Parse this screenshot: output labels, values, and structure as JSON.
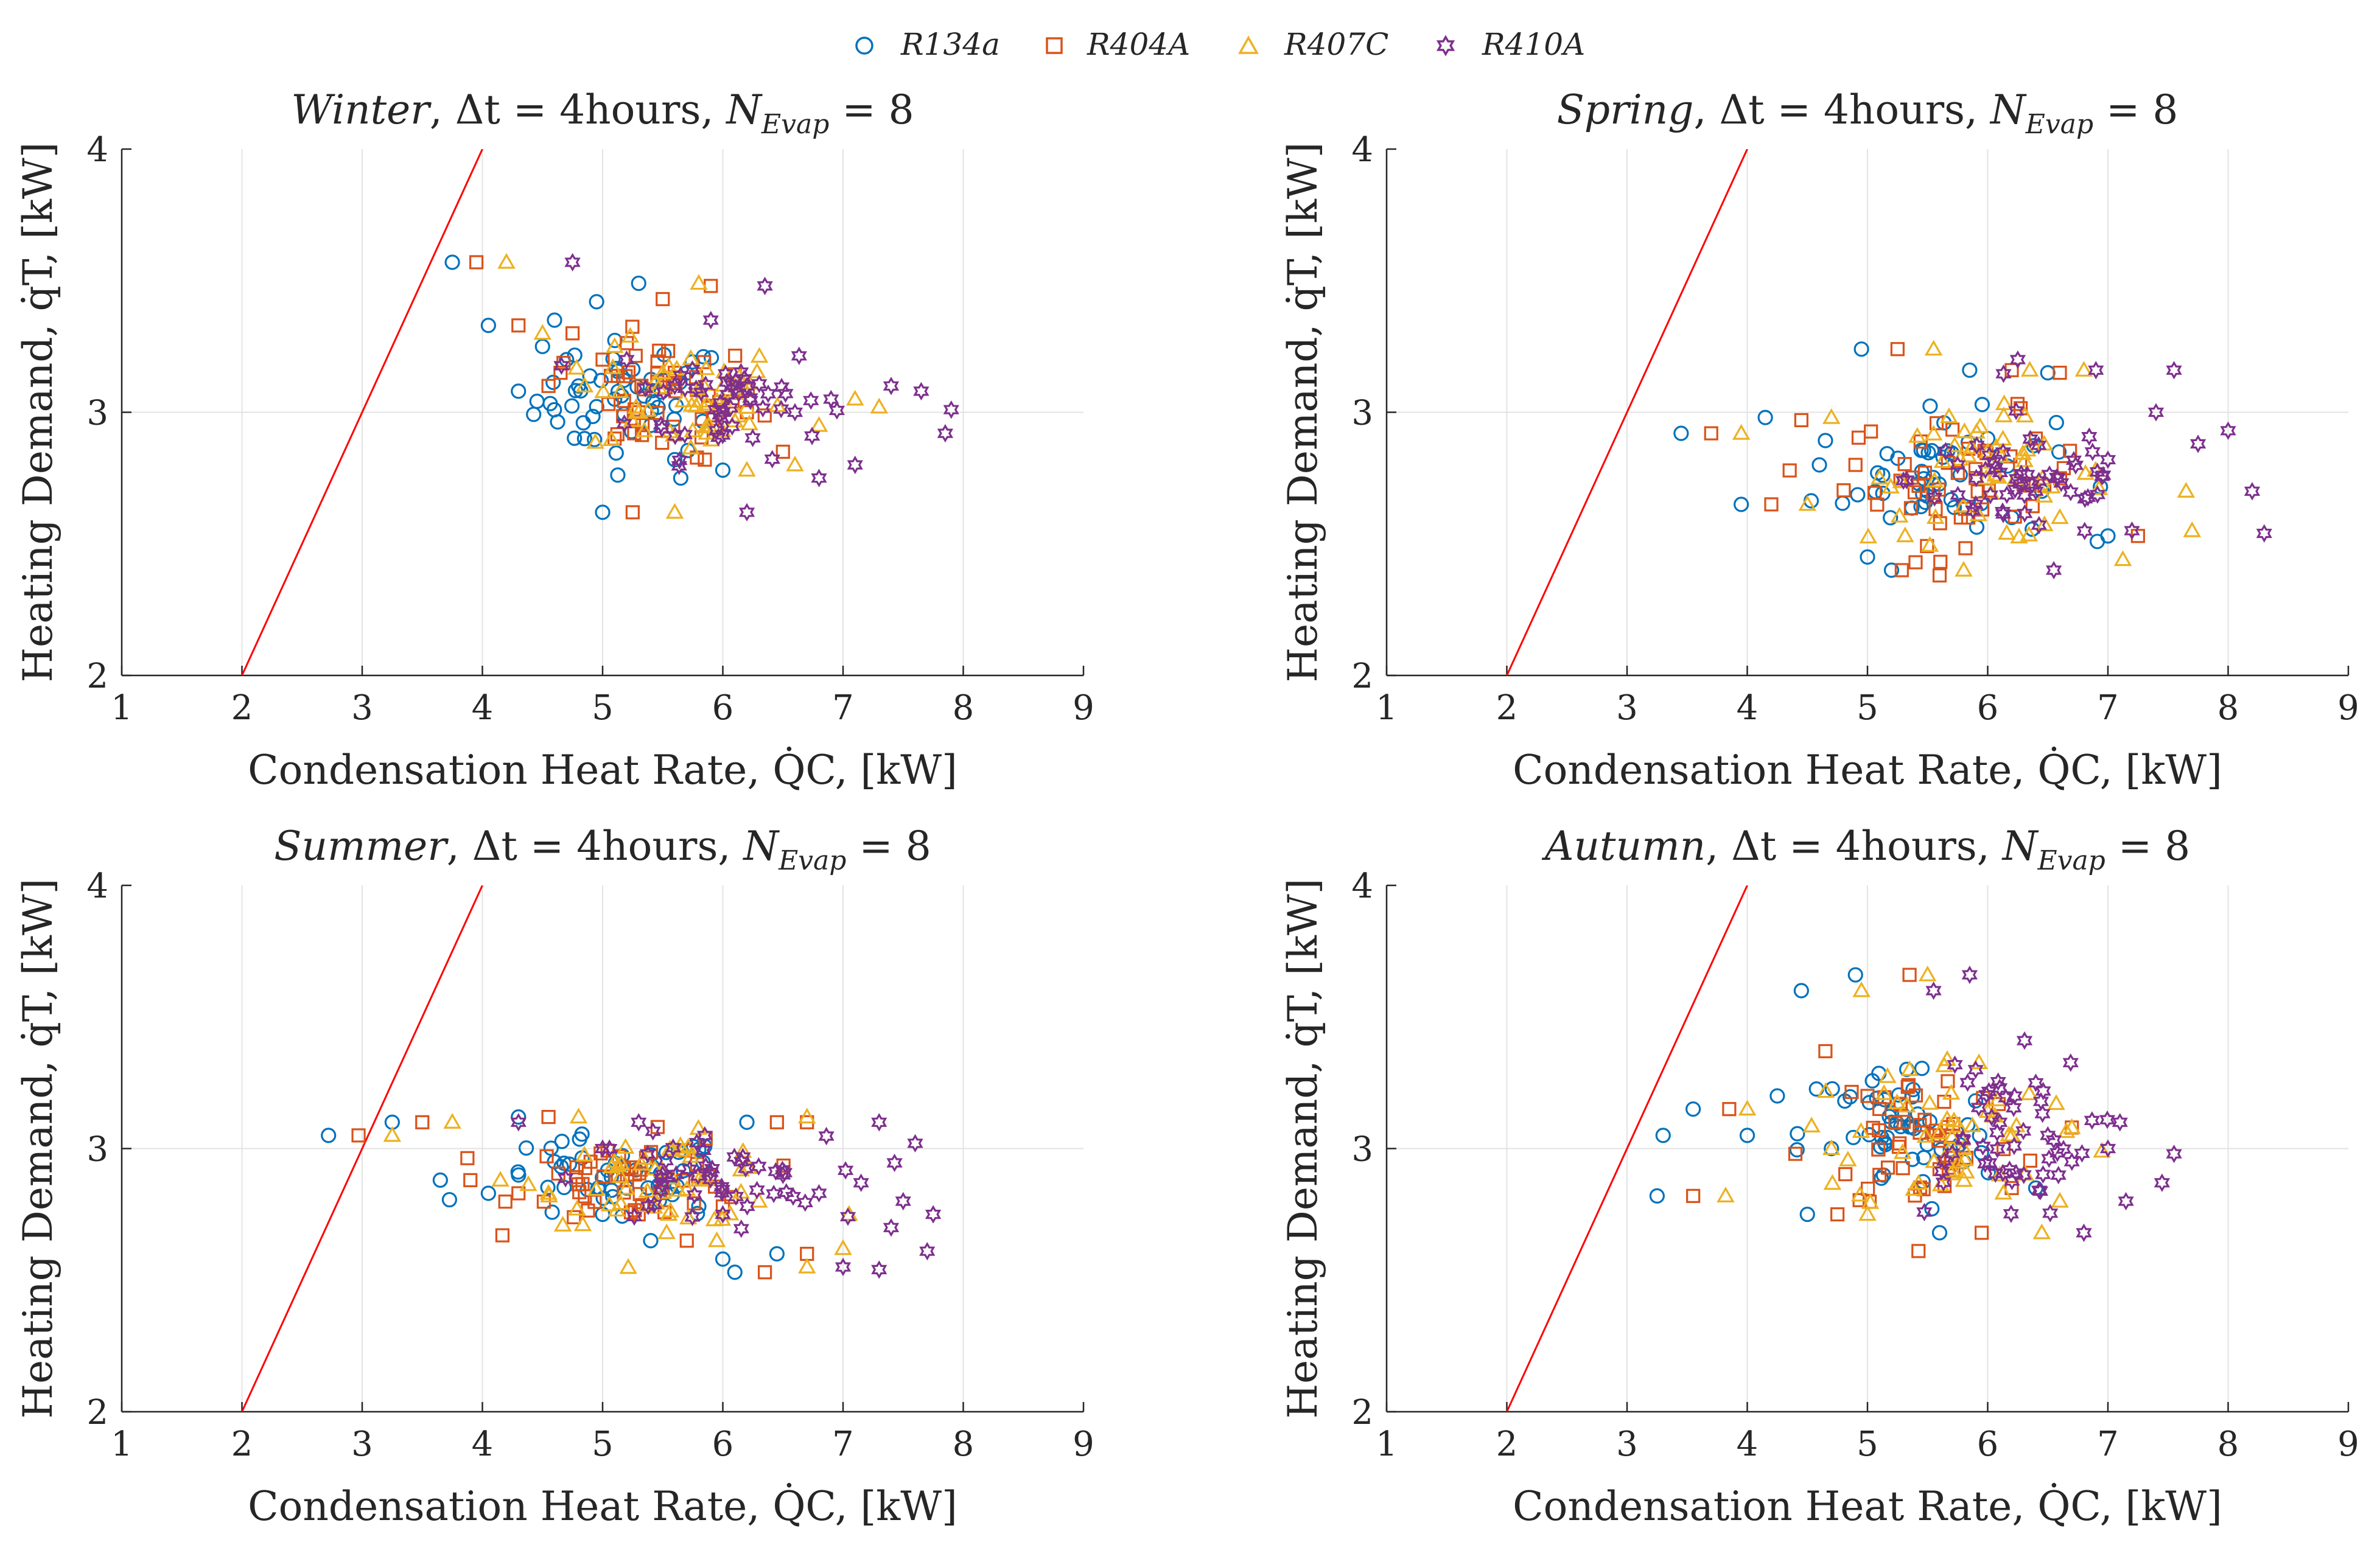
{
  "legend": {
    "position": "top-center",
    "entries": [
      {
        "label": "R134a",
        "marker": "circle",
        "color": "#0072BD"
      },
      {
        "label": "R404A",
        "marker": "square",
        "color": "#D95319"
      },
      {
        "label": "R407C",
        "marker": "triangle",
        "color": "#EDB120"
      },
      {
        "label": "R410A",
        "marker": "hexagram",
        "color": "#7E2F8E"
      }
    ]
  },
  "reference_line": {
    "color": "#FF0000",
    "points": [
      [
        2,
        2
      ],
      [
        4,
        4
      ]
    ]
  },
  "chart_data": [
    {
      "type": "scatter",
      "season": "Winter",
      "title_parts": {
        "season": "Winter",
        "dt": "Δt = 4hours",
        "n": "N",
        "n_sub": "Evap",
        "n_val": "= 8"
      },
      "xlabel": "Condensation Heat Rate, Q̇C, [kW]",
      "ylabel": "Heating Demand, q̇T, [kW]",
      "xlim": [
        1,
        9
      ],
      "ylim": [
        2,
        4
      ],
      "xticks": [
        "1",
        "2",
        "3",
        "4",
        "5",
        "6",
        "7",
        "8",
        "9"
      ],
      "yticks": [
        "2",
        "3",
        "4"
      ],
      "grid": true,
      "center": [
        5.6,
        3.05
      ],
      "spread": [
        0.8,
        0.2
      ],
      "series": [
        {
          "name": "R134a",
          "points": [
            [
              3.75,
              3.57
            ],
            [
              4.05,
              3.33
            ],
            [
              4.3,
              3.08
            ],
            [
              4.5,
              3.25
            ],
            [
              4.6,
              3.35
            ],
            [
              4.8,
              3.1
            ],
            [
              4.85,
              2.9
            ],
            [
              4.95,
              3.42
            ],
            [
              5.0,
              2.62
            ],
            [
              5.3,
              3.49
            ],
            [
              5.6,
              2.82
            ],
            [
              5.65,
              2.75
            ],
            [
              6.0,
              2.78
            ],
            [
              4.7,
              3.2
            ],
            [
              5.1,
              3.05
            ],
            [
              5.4,
              2.95
            ]
          ]
        },
        {
          "name": "R404A",
          "points": [
            [
              3.95,
              3.57
            ],
            [
              4.3,
              3.33
            ],
            [
              4.55,
              3.1
            ],
            [
              4.75,
              3.3
            ],
            [
              5.0,
              3.2
            ],
            [
              5.1,
              2.9
            ],
            [
              5.25,
              2.62
            ],
            [
              5.5,
              3.43
            ],
            [
              5.85,
              2.82
            ],
            [
              5.9,
              3.48
            ],
            [
              6.2,
              3.0
            ],
            [
              6.5,
              2.85
            ],
            [
              5.3,
              3.0
            ],
            [
              5.6,
              3.15
            ],
            [
              4.65,
              3.15
            ]
          ]
        },
        {
          "name": "R404A",
          "points": []
        },
        {
          "name": "R407C",
          "points": [
            [
              4.2,
              3.57
            ],
            [
              4.5,
              3.3
            ],
            [
              4.85,
              3.1
            ],
            [
              5.1,
              3.25
            ],
            [
              5.6,
              2.62
            ],
            [
              5.8,
              3.49
            ],
            [
              6.2,
              2.78
            ],
            [
              6.6,
              2.8
            ],
            [
              7.1,
              3.05
            ],
            [
              7.3,
              3.02
            ],
            [
              5.3,
              3.0
            ],
            [
              5.5,
              3.15
            ],
            [
              6.0,
              3.05
            ],
            [
              6.8,
              2.95
            ]
          ]
        },
        {
          "name": "R410A",
          "points": [
            [
              4.75,
              3.57
            ],
            [
              5.2,
              3.2
            ],
            [
              5.9,
              3.35
            ],
            [
              6.2,
              3.1
            ],
            [
              6.2,
              2.62
            ],
            [
              6.35,
              3.48
            ],
            [
              6.6,
              3.0
            ],
            [
              6.8,
              2.75
            ],
            [
              7.1,
              2.8
            ],
            [
              7.4,
              3.1
            ],
            [
              7.65,
              3.08
            ],
            [
              7.85,
              2.92
            ],
            [
              7.9,
              3.01
            ],
            [
              6.0,
              3.0
            ],
            [
              6.9,
              3.05
            ],
            [
              5.6,
              3.1
            ]
          ]
        }
      ]
    },
    {
      "type": "scatter",
      "season": "Spring",
      "title_parts": {
        "season": "Spring",
        "dt": "Δt = 4hours",
        "n": "N",
        "n_sub": "Evap",
        "n_val": "= 8"
      },
      "xlabel": "Condensation Heat Rate, Q̇C, [kW]",
      "ylabel": "Heating Demand, q̇T, [kW]",
      "xlim": [
        1,
        9
      ],
      "ylim": [
        2,
        4
      ],
      "xticks": [
        "1",
        "2",
        "3",
        "4",
        "5",
        "6",
        "7",
        "8",
        "9"
      ],
      "yticks": [
        "2",
        "3",
        "4"
      ],
      "grid": true,
      "center": [
        5.9,
        2.75
      ],
      "spread": [
        1.0,
        0.22
      ],
      "series": [
        {
          "name": "R134a",
          "points": [
            [
              3.45,
              2.92
            ],
            [
              3.95,
              2.65
            ],
            [
              4.15,
              2.98
            ],
            [
              4.95,
              3.24
            ],
            [
              5.0,
              2.45
            ],
            [
              5.2,
              2.4
            ],
            [
              5.85,
              3.16
            ],
            [
              6.0,
              2.9
            ],
            [
              6.5,
              3.15
            ],
            [
              7.0,
              2.53
            ],
            [
              4.6,
              2.8
            ],
            [
              5.5,
              2.7
            ],
            [
              6.2,
              2.6
            ]
          ]
        },
        {
          "name": "R404A",
          "points": [
            [
              3.7,
              2.92
            ],
            [
              4.2,
              2.65
            ],
            [
              4.45,
              2.97
            ],
            [
              5.25,
              3.24
            ],
            [
              5.4,
              2.43
            ],
            [
              5.6,
              2.38
            ],
            [
              6.2,
              3.16
            ],
            [
              6.6,
              3.15
            ],
            [
              7.25,
              2.53
            ],
            [
              4.9,
              2.8
            ],
            [
              5.9,
              2.75
            ],
            [
              6.4,
              2.9
            ]
          ]
        },
        {
          "name": "R407C",
          "points": [
            [
              3.95,
              2.92
            ],
            [
              4.5,
              2.65
            ],
            [
              4.7,
              2.98
            ],
            [
              5.55,
              3.24
            ],
            [
              5.8,
              2.4
            ],
            [
              6.35,
              3.16
            ],
            [
              6.8,
              3.16
            ],
            [
              7.65,
              2.7
            ],
            [
              7.7,
              2.55
            ],
            [
              5.1,
              2.75
            ],
            [
              6.0,
              2.85
            ],
            [
              6.6,
              2.6
            ]
          ]
        },
        {
          "name": "R410A",
          "points": [
            [
              5.75,
              2.8
            ],
            [
              6.25,
              3.2
            ],
            [
              6.55,
              2.4
            ],
            [
              6.9,
              3.16
            ],
            [
              7.4,
              3.0
            ],
            [
              7.55,
              3.16
            ],
            [
              7.75,
              2.88
            ],
            [
              8.0,
              2.93
            ],
            [
              8.2,
              2.7
            ],
            [
              8.3,
              2.54
            ],
            [
              7.2,
              2.55
            ],
            [
              6.4,
              2.7
            ],
            [
              5.9,
              2.65
            ],
            [
              7.0,
              2.82
            ]
          ]
        }
      ]
    },
    {
      "type": "scatter",
      "season": "Summer",
      "title_parts": {
        "season": "Summer",
        "dt": "Δt = 4hours",
        "n": "N",
        "n_sub": "Evap",
        "n_val": "= 8"
      },
      "xlabel": "Condensation Heat Rate, Q̇C, [kW]",
      "ylabel": "Heating Demand, q̇T, [kW]",
      "xlim": [
        1,
        9
      ],
      "ylim": [
        2,
        4
      ],
      "xticks": [
        "1",
        "2",
        "3",
        "4",
        "5",
        "6",
        "7",
        "8",
        "9"
      ],
      "yticks": [
        "2",
        "3",
        "4"
      ],
      "grid": true,
      "center": [
        5.4,
        2.88
      ],
      "spread": [
        1.0,
        0.15
      ],
      "series": [
        {
          "name": "R134a",
          "points": [
            [
              2.72,
              3.05
            ],
            [
              3.25,
              3.1
            ],
            [
              3.65,
              2.88
            ],
            [
              4.05,
              2.83
            ],
            [
              4.3,
              3.12
            ],
            [
              5.0,
              2.75
            ],
            [
              5.4,
              2.65
            ],
            [
              6.0,
              2.58
            ],
            [
              6.1,
              2.53
            ],
            [
              6.2,
              3.1
            ],
            [
              6.45,
              2.6
            ],
            [
              4.6,
              2.95
            ],
            [
              5.2,
              2.85
            ],
            [
              5.8,
              2.78
            ]
          ]
        },
        {
          "name": "R404A",
          "points": [
            [
              2.97,
              3.05
            ],
            [
              3.5,
              3.1
            ],
            [
              3.9,
              2.88
            ],
            [
              4.3,
              2.83
            ],
            [
              4.55,
              3.12
            ],
            [
              5.3,
              2.75
            ],
            [
              5.7,
              2.65
            ],
            [
              6.35,
              2.53
            ],
            [
              6.45,
              3.1
            ],
            [
              6.7,
              3.1
            ],
            [
              6.7,
              2.6
            ],
            [
              4.9,
              2.95
            ],
            [
              5.5,
              2.85
            ],
            [
              6.0,
              2.78
            ]
          ]
        },
        {
          "name": "R407C",
          "points": [
            [
              3.25,
              3.05
            ],
            [
              3.75,
              3.1
            ],
            [
              4.15,
              2.88
            ],
            [
              4.55,
              2.83
            ],
            [
              4.8,
              3.12
            ],
            [
              5.55,
              2.75
            ],
            [
              5.95,
              2.65
            ],
            [
              6.7,
              2.55
            ],
            [
              6.7,
              3.12
            ],
            [
              7.0,
              2.62
            ],
            [
              7.05,
              2.75
            ],
            [
              5.1,
              2.95
            ],
            [
              5.8,
              2.88
            ],
            [
              6.3,
              2.8
            ]
          ]
        },
        {
          "name": "R410A",
          "points": [
            [
              4.3,
              3.1
            ],
            [
              5.3,
              3.1
            ],
            [
              5.85,
              3.05
            ],
            [
              6.5,
              2.9
            ],
            [
              6.8,
              2.83
            ],
            [
              7.0,
              2.55
            ],
            [
              7.15,
              2.87
            ],
            [
              7.3,
              2.54
            ],
            [
              7.3,
              3.1
            ],
            [
              7.5,
              2.8
            ],
            [
              7.6,
              3.02
            ],
            [
              7.7,
              2.61
            ],
            [
              7.75,
              2.75
            ],
            [
              5.0,
              3.0
            ],
            [
              6.0,
              2.75
            ],
            [
              7.4,
              2.7
            ]
          ]
        }
      ]
    },
    {
      "type": "scatter",
      "season": "Autumn",
      "title_parts": {
        "season": "Autumn",
        "dt": "Δt = 4hours",
        "n": "N",
        "n_sub": "Evap",
        "n_val": "= 8"
      },
      "xlabel": "Condensation Heat Rate, Q̇C, [kW]",
      "ylabel": "Heating Demand, q̇T, [kW]",
      "xlim": [
        1,
        9
      ],
      "ylim": [
        2,
        4
      ],
      "xticks": [
        "1",
        "2",
        "3",
        "4",
        "5",
        "6",
        "7",
        "8",
        "9"
      ],
      "yticks": [
        "2",
        "3",
        "4"
      ],
      "grid": true,
      "center": [
        5.6,
        3.05
      ],
      "spread": [
        0.8,
        0.28
      ],
      "series": [
        {
          "name": "R134a",
          "points": [
            [
              3.25,
              2.82
            ],
            [
              3.3,
              3.05
            ],
            [
              3.55,
              3.15
            ],
            [
              4.0,
              3.05
            ],
            [
              4.25,
              3.2
            ],
            [
              4.45,
              3.6
            ],
            [
              4.5,
              2.75
            ],
            [
              4.9,
              3.66
            ],
            [
              5.6,
              2.68
            ],
            [
              4.7,
              3.0
            ],
            [
              5.2,
              3.1
            ],
            [
              5.8,
              2.95
            ],
            [
              6.4,
              2.85
            ]
          ]
        },
        {
          "name": "R404A",
          "points": [
            [
              3.55,
              2.82
            ],
            [
              3.85,
              3.15
            ],
            [
              4.4,
              2.98
            ],
            [
              4.65,
              3.37
            ],
            [
              4.75,
              2.75
            ],
            [
              5.0,
              3.2
            ],
            [
              5.35,
              3.66
            ],
            [
              5.95,
              2.68
            ],
            [
              6.7,
              3.08
            ],
            [
              5.1,
              2.9
            ],
            [
              5.6,
              3.05
            ],
            [
              6.2,
              2.85
            ]
          ]
        },
        {
          "name": "R407C",
          "points": [
            [
              3.82,
              2.82
            ],
            [
              4.0,
              3.15
            ],
            [
              4.7,
              3.0
            ],
            [
              4.95,
              3.6
            ],
            [
              5.0,
              2.75
            ],
            [
              5.35,
              3.3
            ],
            [
              5.5,
              3.66
            ],
            [
              6.45,
              2.68
            ],
            [
              6.7,
              3.08
            ],
            [
              6.95,
              2.99
            ],
            [
              5.8,
              3.0
            ],
            [
              6.1,
              2.9
            ],
            [
              6.6,
              2.8
            ]
          ]
        },
        {
          "name": "R410A",
          "points": [
            [
              5.55,
              3.6
            ],
            [
              5.85,
              3.66
            ],
            [
              6.1,
              3.1
            ],
            [
              6.4,
              3.25
            ],
            [
              6.5,
              3.05
            ],
            [
              6.8,
              2.68
            ],
            [
              7.0,
              3.0
            ],
            [
              7.1,
              3.1
            ],
            [
              7.15,
              2.8
            ],
            [
              7.45,
              2.87
            ],
            [
              7.55,
              2.98
            ],
            [
              5.9,
              3.3
            ],
            [
              6.3,
              2.9
            ],
            [
              6.7,
              2.95
            ]
          ]
        }
      ]
    }
  ]
}
